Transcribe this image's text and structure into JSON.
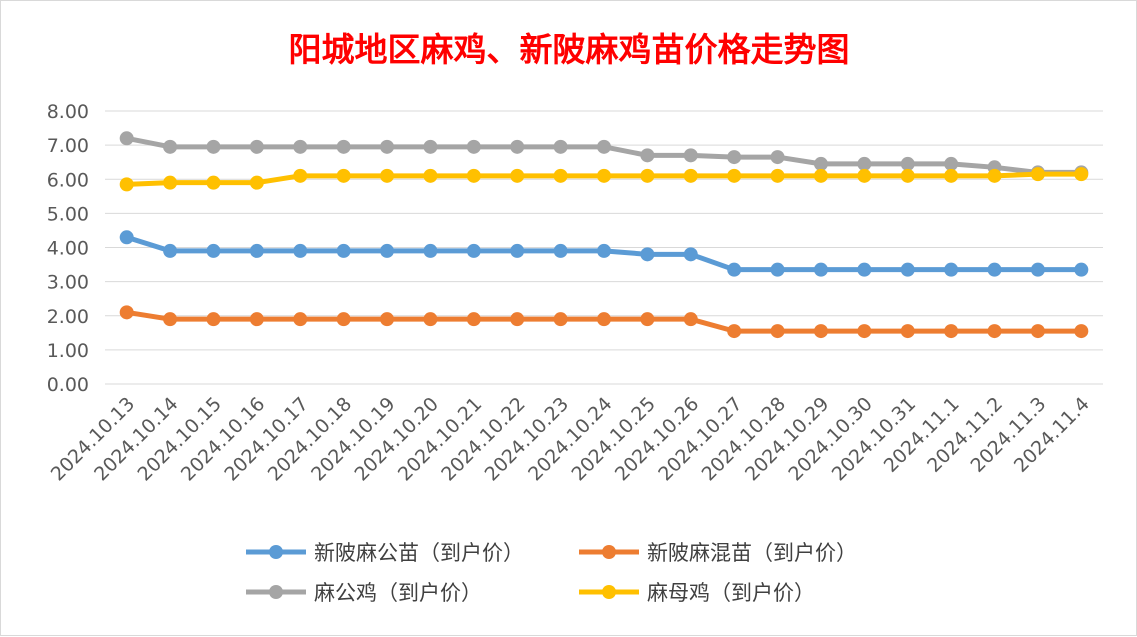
{
  "chart_data": {
    "type": "line",
    "title": "阳城地区麻鸡、新陂麻鸡苗价格走势图",
    "title_color": "#ff0000",
    "xlabel": "",
    "ylabel": "",
    "ylim": [
      0,
      8
    ],
    "y_ticks": [
      "0.00",
      "1.00",
      "2.00",
      "3.00",
      "4.00",
      "5.00",
      "6.00",
      "7.00",
      "8.00"
    ],
    "grid": true,
    "legend_position": "bottom",
    "categories": [
      "2024.10.13",
      "2024.10.14",
      "2024.10.15",
      "2024.10.16",
      "2024.10.17",
      "2024.10.18",
      "2024.10.19",
      "2024.10.20",
      "2024.10.21",
      "2024.10.22",
      "2024.10.23",
      "2024.10.24",
      "2024.10.25",
      "2024.10.26",
      "2024.10.27",
      "2024.10.28",
      "2024.10.29",
      "2024.10.30",
      "2024.10.31",
      "2024.11.1",
      "2024.11.2",
      "2024.11.3",
      "2024.11.4"
    ],
    "series": [
      {
        "name": "新陂麻公苗（到户价）",
        "color": "#5b9bd5",
        "values": [
          4.3,
          3.9,
          3.9,
          3.9,
          3.9,
          3.9,
          3.9,
          3.9,
          3.9,
          3.9,
          3.9,
          3.9,
          3.8,
          3.8,
          3.35,
          3.35,
          3.35,
          3.35,
          3.35,
          3.35,
          3.35,
          3.35,
          3.35
        ]
      },
      {
        "name": "新陂麻混苗（到户价）",
        "color": "#ed7d31",
        "values": [
          2.1,
          1.9,
          1.9,
          1.9,
          1.9,
          1.9,
          1.9,
          1.9,
          1.9,
          1.9,
          1.9,
          1.9,
          1.9,
          1.9,
          1.55,
          1.55,
          1.55,
          1.55,
          1.55,
          1.55,
          1.55,
          1.55,
          1.55
        ]
      },
      {
        "name": "麻公鸡（到户价）",
        "color": "#a5a5a5",
        "values": [
          7.2,
          6.95,
          6.95,
          6.95,
          6.95,
          6.95,
          6.95,
          6.95,
          6.95,
          6.95,
          6.95,
          6.95,
          6.7,
          6.7,
          6.65,
          6.65,
          6.45,
          6.45,
          6.45,
          6.45,
          6.35,
          6.2,
          6.2
        ]
      },
      {
        "name": "麻母鸡（到户价）",
        "color": "#ffc000",
        "values": [
          5.85,
          5.9,
          5.9,
          5.9,
          6.1,
          6.1,
          6.1,
          6.1,
          6.1,
          6.1,
          6.1,
          6.1,
          6.1,
          6.1,
          6.1,
          6.1,
          6.1,
          6.1,
          6.1,
          6.1,
          6.1,
          6.15,
          6.15
        ]
      }
    ]
  }
}
